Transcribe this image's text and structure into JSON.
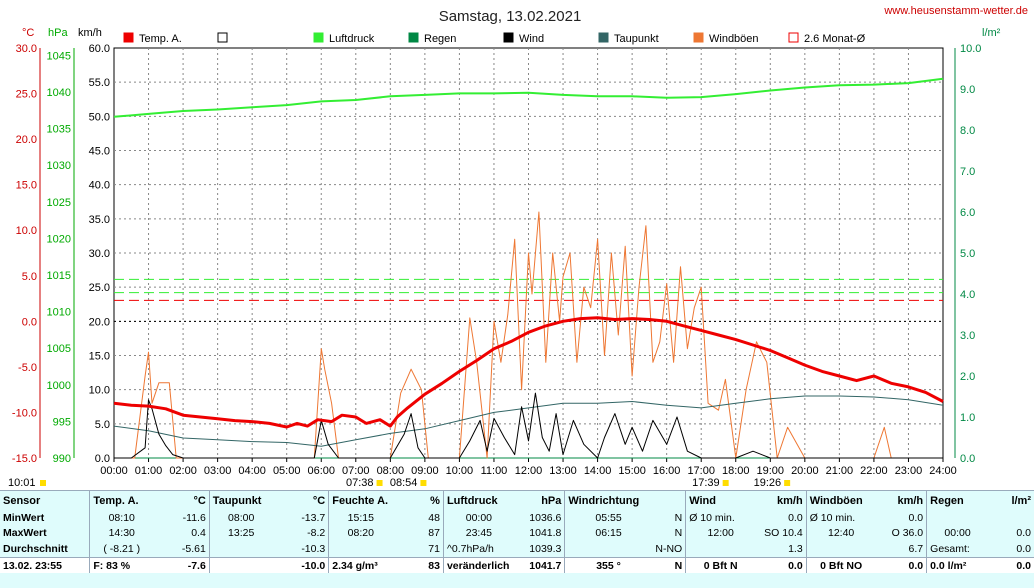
{
  "header": {
    "title": "Samstag, 13.02.2021",
    "site": "www.heusenstamm-wetter.de"
  },
  "axes": {
    "temp_unit": "°C",
    "pressure_unit": "hPa",
    "wind_unit": "km/h",
    "rain_unit": "l/m²",
    "temp_ticks": [
      "30.0",
      "25.0",
      "20.0",
      "15.0",
      "10.0",
      "5.0",
      "0.0",
      "-5.0",
      "-10.0",
      "-15.0"
    ],
    "pressure_ticks": [
      "1045",
      "1040",
      "1035",
      "1030",
      "1025",
      "1020",
      "1015",
      "1010",
      "1005",
      "1000",
      "995",
      "990"
    ],
    "wind_ticks": [
      "60.0",
      "55.0",
      "50.0",
      "45.0",
      "40.0",
      "35.0",
      "30.0",
      "25.0",
      "20.0",
      "15.0",
      "10.0",
      "5.0",
      "0.0"
    ],
    "rain_ticks": [
      "10.0",
      "9.0",
      "8.0",
      "7.0",
      "6.0",
      "5.0",
      "4.0",
      "3.0",
      "2.0",
      "1.0",
      "0.0"
    ],
    "time_ticks": [
      "00:00",
      "01:00",
      "02:00",
      "03:00",
      "04:00",
      "05:00",
      "06:00",
      "07:00",
      "08:00",
      "09:00",
      "10:00",
      "11:00",
      "12:00",
      "13:00",
      "14:00",
      "15:00",
      "16:00",
      "17:00",
      "18:00",
      "19:00",
      "20:00",
      "21:00",
      "22:00",
      "23:00",
      "24:00"
    ],
    "sun_events": [
      {
        "label": "10:01",
        "hour": 0
      },
      {
        "label": "07:38",
        "hour": 7.63
      },
      {
        "label": "08:54",
        "hour": 8.9
      },
      {
        "label": "17:39",
        "hour": 17.65
      },
      {
        "label": "19:26",
        "hour": 19.43
      }
    ]
  },
  "legend": [
    {
      "label": "Temp. A.",
      "color": "#ee0000",
      "style": "filled"
    },
    {
      "label": "",
      "color": "#ffffff",
      "style": "box"
    },
    {
      "label": "Luftdruck",
      "color": "#33ee33",
      "style": "filled"
    },
    {
      "label": "Regen",
      "color": "#008844",
      "style": "filled"
    },
    {
      "label": "Wind",
      "color": "#000000",
      "style": "filled"
    },
    {
      "label": "Taupunkt",
      "color": "#336666",
      "style": "filled"
    },
    {
      "label": "Windböen",
      "color": "#ee7733",
      "style": "filled"
    },
    {
      "label": "2.6 Monat-Ø",
      "color": "#ee0000",
      "style": "outline"
    }
  ],
  "chart_data": {
    "type": "line",
    "title": "Samstag, 13.02.2021",
    "x_unit": "hour",
    "xlim": [
      0,
      24
    ],
    "temp_ylim": [
      -15,
      30
    ],
    "pressure_ylim": [
      990,
      1046
    ],
    "wind_ylim": [
      0,
      60
    ],
    "rain_ylim": [
      0,
      10
    ],
    "reference_lines": [
      {
        "name": "Temp. Monat-Ø",
        "axis": "temp",
        "value": 2.3,
        "color": "#ee0000"
      },
      {
        "name": "Druck Monat-Ø",
        "axis": "pressure",
        "value": 1014.4,
        "color": "#33ee33"
      },
      {
        "name": "Wind Monat-Ø",
        "axis": "wind",
        "value": 24.2,
        "color": "#33ee33"
      },
      {
        "name": "0 °C",
        "axis": "temp",
        "value": 0,
        "color": "#000000"
      }
    ],
    "series": [
      {
        "name": "Temp. A.",
        "axis": "temp",
        "color": "#ee0000",
        "width": 3,
        "x": [
          0,
          0.5,
          1,
          1.5,
          2,
          2.5,
          3,
          3.5,
          4,
          4.5,
          5,
          5.3,
          5.6,
          5.9,
          6.3,
          6.6,
          7,
          7.3,
          7.7,
          8,
          8.2,
          8.5,
          9,
          9.5,
          10,
          10.5,
          11,
          11.5,
          12,
          12.5,
          13,
          13.5,
          14,
          14.5,
          15,
          15.5,
          16,
          16.5,
          17,
          17.5,
          18,
          18.5,
          19,
          19.5,
          20,
          20.5,
          21,
          21.5,
          22,
          22.5,
          23,
          23.5,
          24
        ],
        "y": [
          -9.0,
          -9.2,
          -9.3,
          -9.6,
          -10.3,
          -10.5,
          -10.7,
          -10.9,
          -11.0,
          -11.2,
          -11.6,
          -11.2,
          -11.5,
          -10.8,
          -11.0,
          -10.3,
          -10.5,
          -11.2,
          -10.8,
          -11.5,
          -10.5,
          -9.5,
          -8.0,
          -6.8,
          -5.5,
          -4.3,
          -3.0,
          -2.2,
          -1.2,
          -0.5,
          0.0,
          0.3,
          0.4,
          0.2,
          0.3,
          0.2,
          0.0,
          -0.5,
          -1.0,
          -1.5,
          -2.0,
          -2.6,
          -3.2,
          -4.0,
          -4.8,
          -5.5,
          -6.0,
          -6.5,
          -6.0,
          -6.8,
          -7.2,
          -7.8,
          -8.8
        ]
      },
      {
        "name": "Luftdruck",
        "axis": "pressure",
        "color": "#33ee33",
        "width": 2,
        "x": [
          0,
          1,
          2,
          3,
          4,
          5,
          6,
          7,
          8,
          9,
          10,
          11,
          12,
          13,
          14,
          15,
          16,
          17,
          18,
          19,
          20,
          21,
          22,
          23,
          24
        ],
        "y": [
          1036.6,
          1037.0,
          1037.4,
          1037.6,
          1037.9,
          1038.2,
          1038.7,
          1038.9,
          1039.4,
          1039.6,
          1039.8,
          1039.8,
          1039.9,
          1039.6,
          1039.4,
          1039.4,
          1039.2,
          1039.3,
          1039.7,
          1040.2,
          1040.6,
          1040.9,
          1041.0,
          1041.2,
          1041.8
        ]
      },
      {
        "name": "Taupunkt",
        "axis": "temp",
        "color": "#336666",
        "width": 1,
        "x": [
          0,
          1,
          2,
          3,
          4,
          5,
          6,
          7,
          8,
          9,
          10,
          11,
          12,
          13,
          14,
          15,
          16,
          17,
          18,
          19,
          20,
          21,
          22,
          23,
          24
        ],
        "y": [
          -11.5,
          -12.0,
          -12.8,
          -13.0,
          -13.2,
          -13.3,
          -13.7,
          -13.0,
          -12.3,
          -11.8,
          -10.9,
          -10.0,
          -9.5,
          -9.0,
          -9.0,
          -8.8,
          -9.2,
          -9.5,
          -9.0,
          -8.5,
          -8.2,
          -8.2,
          -8.3,
          -8.6,
          -9.2
        ]
      },
      {
        "name": "Wind",
        "axis": "wind",
        "color": "#000000",
        "width": 1,
        "x": [
          0,
          0.5,
          0.9,
          1.0,
          1.1,
          1.3,
          1.5,
          1.7,
          2.0,
          3,
          4,
          5,
          5.8,
          6.0,
          6.2,
          6.5,
          7.0,
          7.5,
          8.0,
          8.4,
          8.6,
          8.8,
          9.0,
          9.5,
          10.0,
          10.3,
          10.6,
          10.8,
          11.0,
          11.3,
          11.6,
          11.8,
          12.0,
          12.2,
          12.4,
          12.6,
          12.8,
          13.0,
          13.3,
          13.6,
          14.0,
          14.2,
          14.5,
          14.8,
          15.0,
          15.3,
          15.6,
          16.0,
          16.3,
          16.6,
          17.0,
          17.5,
          18.0,
          18.5,
          19.0,
          20,
          24
        ],
        "y": [
          0,
          0,
          1.5,
          8.5,
          7.2,
          3.5,
          1.8,
          0.5,
          0,
          0,
          0,
          0,
          0,
          5.5,
          2.0,
          0,
          0,
          0,
          0,
          3.5,
          6.5,
          1.5,
          0,
          0,
          0,
          2.5,
          5.5,
          1.0,
          5.8,
          3.0,
          0.5,
          7.5,
          2.5,
          9.5,
          3.0,
          1.0,
          6.5,
          0.5,
          5.5,
          2.0,
          0,
          3.0,
          6.5,
          2.0,
          4.5,
          1.0,
          5.5,
          2.0,
          6.0,
          1.0,
          0,
          0,
          0,
          1.0,
          0,
          0,
          0
        ]
      },
      {
        "name": "Windböen",
        "axis": "wind",
        "color": "#ee7733",
        "width": 1,
        "x": [
          0,
          0.6,
          0.9,
          1.0,
          1.1,
          1.3,
          1.6,
          1.8,
          2.0,
          2.5,
          3,
          4,
          5,
          5.8,
          6.0,
          6.1,
          6.3,
          6.5,
          7.0,
          7.5,
          8.0,
          8.3,
          8.6,
          8.9,
          9.1,
          9.5,
          10.0,
          10.3,
          10.5,
          10.8,
          11.0,
          11.2,
          11.4,
          11.6,
          11.8,
          12.0,
          12.1,
          12.3,
          12.5,
          12.7,
          12.9,
          13.0,
          13.2,
          13.4,
          13.6,
          13.8,
          14.0,
          14.2,
          14.4,
          14.6,
          14.8,
          15.0,
          15.2,
          15.4,
          15.6,
          15.8,
          16.0,
          16.2,
          16.4,
          16.6,
          16.8,
          17.0,
          17.2,
          17.5,
          17.7,
          18.0,
          18.3,
          18.6,
          18.9,
          19.2,
          19.5,
          20,
          21,
          22,
          22.3,
          22.5,
          23,
          24
        ],
        "y": [
          0,
          0,
          12.0,
          15.5,
          8.0,
          11.0,
          11.0,
          0,
          0,
          0,
          0,
          0,
          0,
          0,
          16.0,
          13.0,
          8.0,
          0,
          0,
          0,
          0,
          9.5,
          13.0,
          10.0,
          0,
          0,
          0,
          20.5,
          14.0,
          0,
          20.0,
          14.0,
          21.0,
          32.0,
          10.0,
          30.0,
          24.0,
          36.0,
          14.0,
          30.0,
          20.0,
          26.5,
          30.0,
          14.0,
          25.0,
          22.0,
          32.0,
          15.0,
          30.0,
          18.0,
          31.0,
          12.0,
          25.0,
          34.0,
          14.0,
          17.0,
          25.5,
          14.0,
          28.0,
          16.0,
          22.0,
          25.0,
          8.0,
          7.0,
          11.5,
          0,
          10.0,
          17.0,
          14.0,
          0,
          4.5,
          0,
          0,
          0,
          4.5,
          0,
          0,
          0
        ]
      },
      {
        "name": "Regen",
        "axis": "rain",
        "color": "#008844",
        "width": 1,
        "x": [
          0,
          24
        ],
        "y": [
          0,
          0
        ]
      }
    ]
  },
  "summary": {
    "headers": [
      {
        "a": "Sensor",
        "b": ""
      },
      {
        "a": "Temp. A.",
        "b": "°C"
      },
      {
        "a": "Taupunkt",
        "b": "°C"
      },
      {
        "a": "Feuchte A.",
        "b": "%"
      },
      {
        "a": "Luftdruck",
        "b": "hPa"
      },
      {
        "a": "Windrichtung",
        "b": ""
      },
      {
        "a": "Wind",
        "b": "km/h"
      },
      {
        "a": "Windböen",
        "b": "km/h"
      },
      {
        "a": "Regen",
        "b": "l/m²"
      }
    ],
    "rows": [
      [
        "MinWert",
        "08:10",
        "-11.6",
        "08:00",
        "-13.7",
        "15:15",
        "48",
        "00:00",
        "1036.6",
        "05:55",
        "N",
        "Ø 10 min.",
        "0.0",
        "Ø 10 min.",
        "0.0",
        "",
        ""
      ],
      [
        "MaxWert",
        "14:30",
        "0.4",
        "13:25",
        "-8.2",
        "08:20",
        "87",
        "23:45",
        "1041.8",
        "06:15",
        "N",
        "12:00",
        "SO 10.4",
        "12:40",
        "O 36.0",
        "00:00",
        "0.0"
      ],
      [
        "Durchschnitt",
        "( -8.21 )",
        "-5.61",
        "",
        "-10.3",
        "",
        "71",
        "^0.7hPa/h",
        "1039.3",
        "",
        "N-NO",
        "",
        "1.3",
        "",
        "6.7",
        "Gesamt:",
        "0.0"
      ]
    ],
    "current": [
      "13.02. 23:55",
      "F: 83 %",
      "-7.6",
      "",
      "-10.0",
      "2.34 g/m³",
      "83",
      "veränderlich",
      "1041.7",
      "355 °",
      "N",
      "0 Bft N",
      "0.0",
      "0 Bft NO",
      "0.0",
      "0.0 l/m²",
      "0.0"
    ]
  }
}
